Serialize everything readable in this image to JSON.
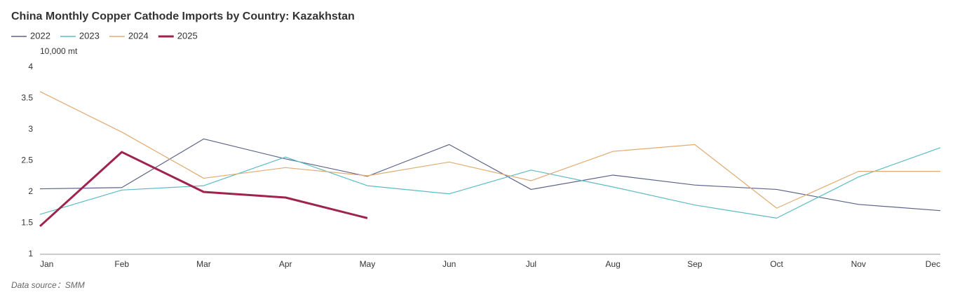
{
  "chart_data": {
    "type": "line",
    "title": "China Monthly Copper Cathode Imports by Country: Kazakhstan",
    "y_axis_label": "10,000 mt",
    "source": "Data source：SMM",
    "categories": [
      "Jan",
      "Feb",
      "Mar",
      "Apr",
      "May",
      "Jun",
      "Jul",
      "Aug",
      "Sep",
      "Oct",
      "Nov",
      "Dec"
    ],
    "series": [
      {
        "name": "2022",
        "color": "#5b6388",
        "values": [
          2.05,
          2.07,
          2.85,
          2.53,
          2.25,
          2.76,
          2.04,
          2.27,
          2.11,
          2.04,
          1.8,
          1.7
        ]
      },
      {
        "name": "2023",
        "color": "#5bbcc4",
        "values": [
          1.64,
          2.03,
          2.1,
          2.56,
          2.1,
          1.97,
          2.35,
          2.08,
          1.79,
          1.58,
          2.24,
          2.71
        ]
      },
      {
        "name": "2024",
        "color": "#e0ab72",
        "values": [
          3.61,
          2.96,
          2.22,
          2.39,
          2.26,
          2.48,
          2.18,
          2.65,
          2.76,
          1.74,
          2.33,
          2.33
        ]
      },
      {
        "name": "2025",
        "color": "#a0234e",
        "values": [
          1.45,
          2.64,
          2.0,
          1.91,
          1.58,
          null,
          null,
          null,
          null,
          null,
          null,
          null
        ]
      }
    ],
    "ylim": [
      1,
      4
    ],
    "yticks": [
      1,
      1.5,
      2,
      2.5,
      3,
      3.5,
      4
    ],
    "grid": false,
    "legend": "top-left"
  }
}
